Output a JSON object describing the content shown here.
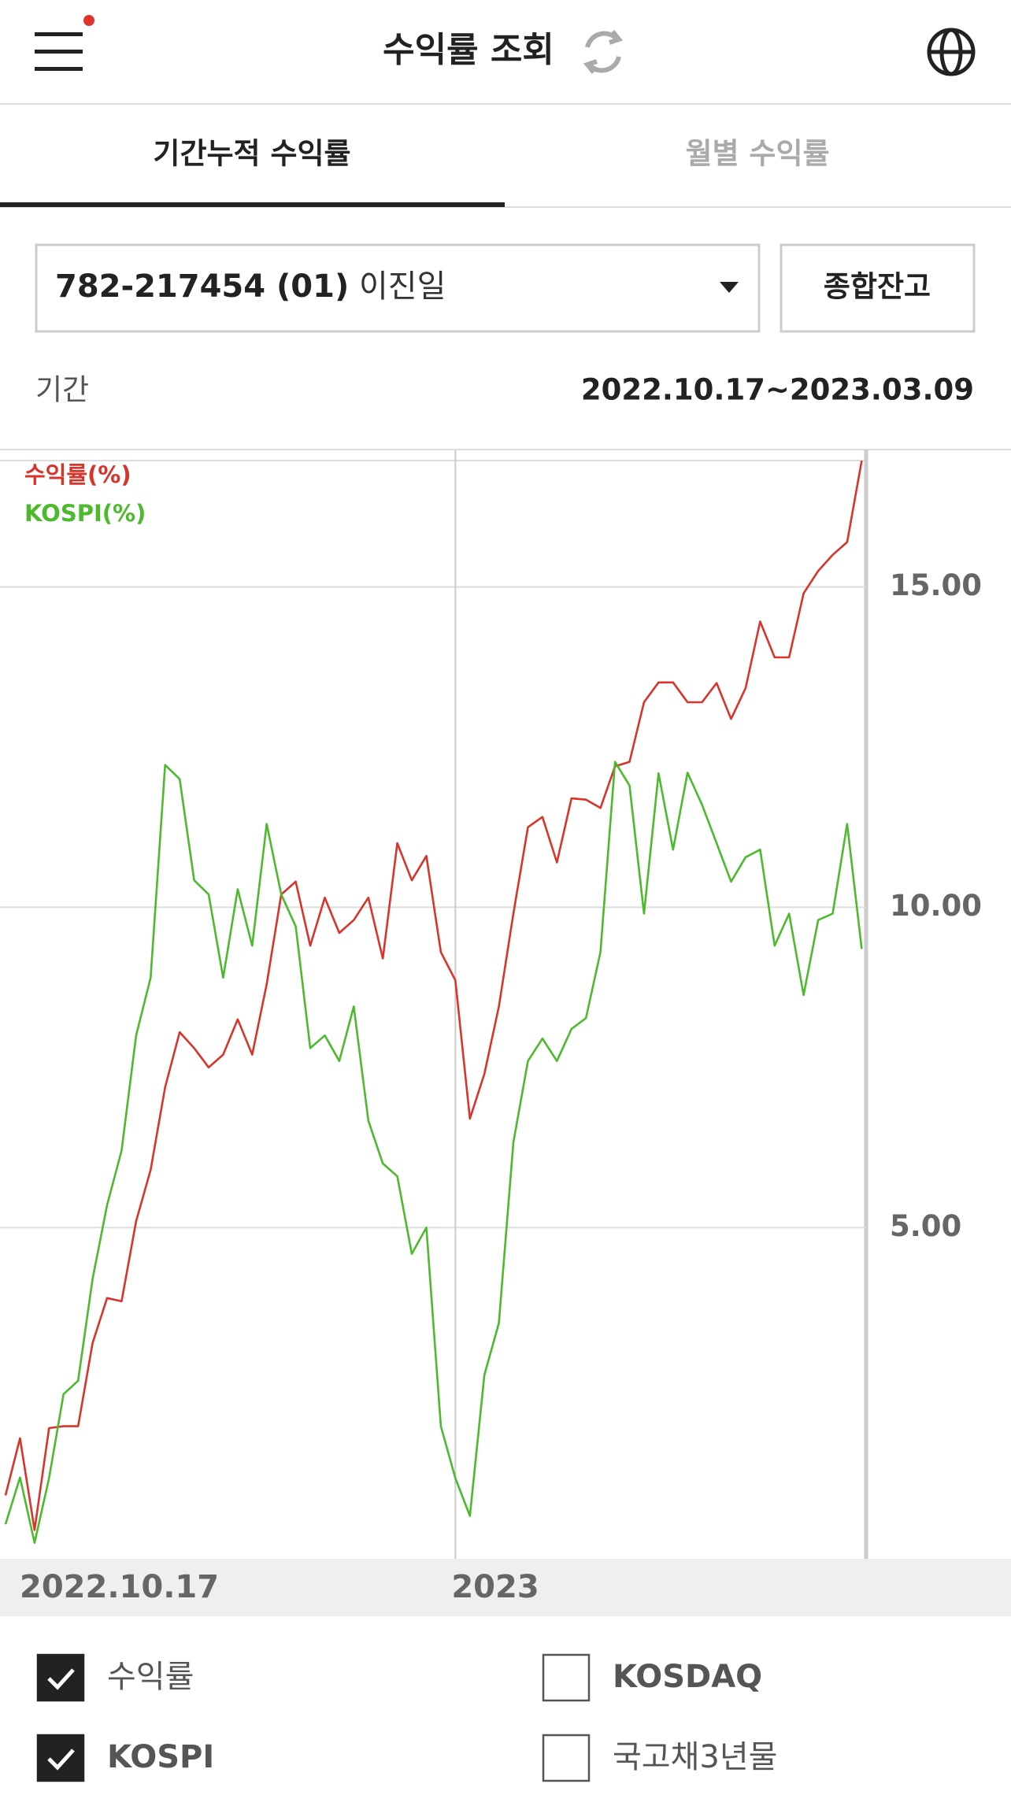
{
  "header": {
    "title": "수익률 조회"
  },
  "tabs": [
    {
      "label": "기간누적 수익률",
      "active": true
    },
    {
      "label": "월별 수익률",
      "active": false
    }
  ],
  "account": {
    "number": "782-217454 (01)",
    "name": "이진일",
    "button": "종합잔고"
  },
  "period": {
    "label": "기간",
    "range": "2022.10.17~2023.03.09"
  },
  "chart_data": {
    "type": "line",
    "categories": [
      "2022.10.17",
      null,
      null,
      null,
      null,
      null,
      null,
      null,
      null,
      null,
      null,
      null,
      null,
      null,
      null,
      null,
      null,
      null,
      null,
      null,
      null,
      null,
      null,
      null,
      null,
      null,
      null,
      null,
      null,
      null,
      null,
      "2023",
      null,
      null,
      null,
      null,
      null,
      null,
      null,
      null,
      null,
      null,
      null,
      null,
      null,
      null,
      null,
      null,
      null,
      null,
      null,
      null,
      null,
      null,
      null,
      null,
      null,
      null,
      null,
      null
    ],
    "series": [
      {
        "name": "수익률(%)",
        "color": "#d9342b",
        "values": [
          0.82,
          1.71,
          0.28,
          1.87,
          1.9,
          1.9,
          3.2,
          3.9,
          3.85,
          5.1,
          5.9,
          7.19,
          8.05,
          7.8,
          7.5,
          7.7,
          8.25,
          7.7,
          8.8,
          10.2,
          10.4,
          9.4,
          10.15,
          9.6,
          9.8,
          10.15,
          9.2,
          11.0,
          10.42,
          10.8,
          9.3,
          8.86,
          6.7,
          7.4,
          8.45,
          9.9,
          11.25,
          11.41,
          10.7,
          11.7,
          11.68,
          11.55,
          12.2,
          12.27,
          13.2,
          13.51,
          13.51,
          13.2,
          13.2,
          13.5,
          12.94,
          13.42,
          14.46,
          13.9,
          13.9,
          14.9,
          15.25,
          15.5,
          15.7,
          16.97
        ]
      },
      {
        "name": "KOSPI(%)",
        "color": "#4cba2c",
        "values": [
          0.37,
          1.1,
          0.08,
          1.09,
          2.4,
          2.61,
          4.2,
          5.35,
          6.2,
          8.0,
          8.9,
          12.22,
          12.0,
          10.42,
          10.2,
          8.9,
          10.28,
          9.4,
          11.3,
          10.2,
          9.7,
          7.8,
          8.0,
          7.6,
          8.45,
          6.67,
          6.0,
          5.8,
          4.59,
          5.0,
          1.9,
          1.09,
          0.5,
          2.7,
          3.51,
          6.33,
          7.6,
          7.95,
          7.6,
          8.1,
          8.27,
          9.3,
          12.27,
          11.9,
          9.9,
          12.09,
          10.9,
          12.1,
          11.6,
          11.0,
          10.4,
          10.78,
          10.9,
          9.4,
          9.9,
          8.63,
          9.8,
          9.9,
          11.3,
          9.35
        ]
      }
    ],
    "ylim": [
      -0.17,
      17.12
    ],
    "yticks": [
      {
        "value": 5,
        "label": "5.00"
      },
      {
        "value": 10,
        "label": "10.00"
      },
      {
        "value": 15,
        "label": "15.00"
      }
    ],
    "grid": true,
    "legend": "top-left"
  },
  "options": [
    {
      "label": "수익률",
      "checked": true
    },
    {
      "label": "KOSDAQ",
      "checked": false
    },
    {
      "label": "KOSPI",
      "checked": true
    },
    {
      "label": "국고채3년물",
      "checked": false
    }
  ]
}
